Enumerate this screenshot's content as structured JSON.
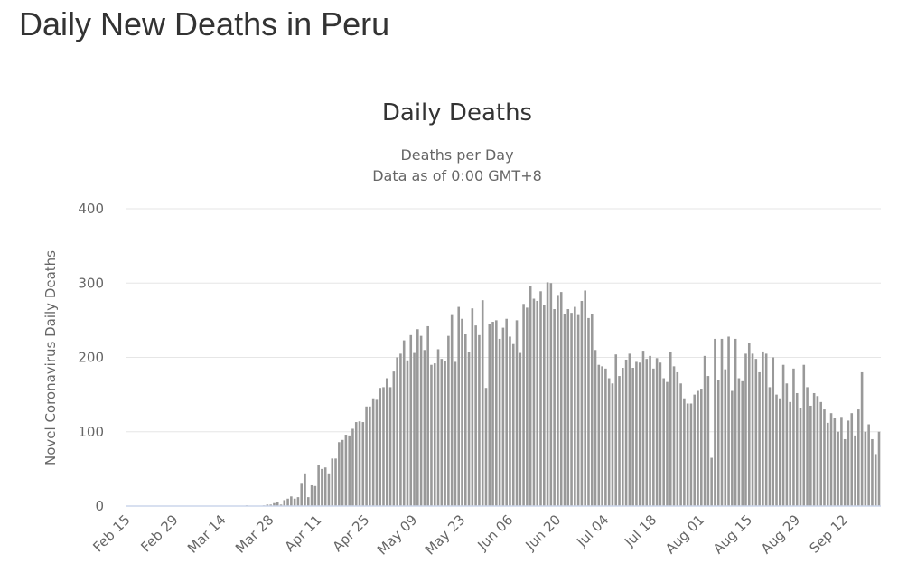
{
  "page": {
    "title": "Daily New Deaths in Peru"
  },
  "chart_data": {
    "type": "bar",
    "title": "Daily Deaths",
    "subtitle": [
      "Deaths per Day",
      "Data as of 0:00 GMT+8"
    ],
    "xlabel": "",
    "ylabel": "Novel Coronavirus Daily Deaths",
    "ylim": [
      0,
      400
    ],
    "yticks": [
      "0",
      "100",
      "200",
      "300",
      "400"
    ],
    "ytick_values": [
      0,
      100,
      200,
      300,
      400
    ],
    "grid": true,
    "x_start": "Feb 15",
    "x_end": "Sep 22",
    "xtick_every_days": 14,
    "xticks": [
      "Feb 15",
      "Feb 29",
      "Mar 14",
      "Mar 28",
      "Apr 11",
      "Apr 25",
      "May 09",
      "May 23",
      "Jun 06",
      "Jun 20",
      "Jul 04",
      "Jul 18",
      "Aug 01",
      "Aug 15",
      "Aug 29",
      "Sep 12"
    ],
    "series": [
      {
        "name": "Daily Deaths",
        "color": "#999999",
        "values": [
          0,
          0,
          0,
          0,
          0,
          0,
          0,
          0,
          0,
          0,
          0,
          0,
          0,
          0,
          0,
          0,
          0,
          0,
          0,
          0,
          0,
          0,
          0,
          0,
          0,
          0,
          0,
          0,
          0,
          0,
          0,
          0,
          0,
          0,
          0,
          1,
          0,
          0,
          0,
          0,
          1,
          2,
          2,
          4,
          5,
          2,
          8,
          10,
          13,
          10,
          12,
          30,
          44,
          12,
          28,
          27,
          55,
          50,
          52,
          44,
          64,
          64,
          86,
          89,
          96,
          95,
          104,
          113,
          114,
          113,
          134,
          134,
          145,
          143,
          159,
          160,
          172,
          160,
          181,
          200,
          205,
          223,
          196,
          230,
          206,
          238,
          229,
          210,
          242,
          190,
          192,
          211,
          198,
          195,
          229,
          257,
          194,
          268,
          252,
          231,
          207,
          266,
          243,
          230,
          277,
          159,
          245,
          248,
          250,
          225,
          240,
          252,
          228,
          218,
          250,
          206,
          272,
          267,
          296,
          279,
          276,
          289,
          270,
          301,
          300,
          265,
          284,
          288,
          258,
          265,
          260,
          268,
          257,
          276,
          290,
          253,
          258,
          210,
          190,
          188,
          185,
          172,
          165,
          204,
          175,
          186,
          197,
          205,
          186,
          194,
          193,
          209,
          198,
          202,
          185,
          199,
          193,
          172,
          167,
          207,
          188,
          180,
          165,
          145,
          138,
          138,
          150,
          155,
          158,
          202,
          175,
          65,
          225,
          170,
          225,
          184,
          228,
          155,
          225,
          172,
          168,
          205,
          220,
          205,
          198,
          180,
          208,
          205,
          160,
          200,
          150,
          145,
          190,
          165,
          140,
          185,
          152,
          132,
          190,
          160,
          135,
          152,
          148,
          140,
          130,
          112,
          125,
          118,
          100,
          120,
          90,
          115,
          125,
          95,
          130,
          180,
          100,
          110,
          90,
          70,
          100
        ]
      }
    ]
  }
}
